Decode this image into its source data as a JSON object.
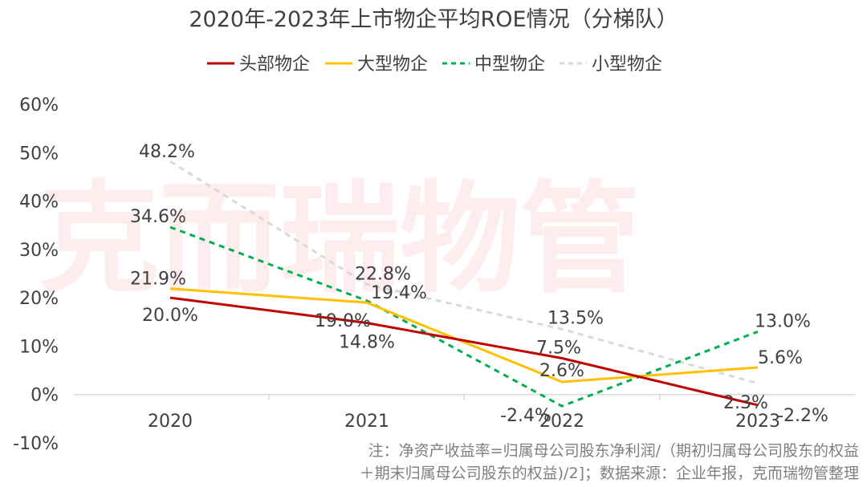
{
  "chart_data": {
    "type": "line",
    "title": "2020年-2023年上市物企平均ROE情况（分梯队）",
    "categories": [
      "2020",
      "2021",
      "2022",
      "2023"
    ],
    "yticks": [
      "60%",
      "50%",
      "40%",
      "30%",
      "20%",
      "10%",
      "0%",
      "-10%"
    ],
    "ylim": [
      -10,
      60
    ],
    "legend_position": "top-center",
    "grid": false,
    "series": [
      {
        "name": "头部物企",
        "color": "#c00000",
        "dash": "solid",
        "values": [
          20.0,
          14.8,
          7.5,
          -2.2
        ],
        "labels": [
          "20.0%",
          "14.8%",
          "7.5%",
          "-2.2%"
        ]
      },
      {
        "name": "大型物企",
        "color": "#ffc000",
        "dash": "solid",
        "values": [
          21.9,
          19.0,
          2.6,
          5.6
        ],
        "labels": [
          "21.9%",
          "19.0%",
          "2.6%",
          "5.6%"
        ]
      },
      {
        "name": "中型物企",
        "color": "#00b050",
        "dash": "dashed",
        "values": [
          34.6,
          19.4,
          -2.4,
          13.0
        ],
        "labels": [
          "34.6%",
          "19.4%",
          "-2.4%",
          "13.0%"
        ]
      },
      {
        "name": "小型物企",
        "color": "#d9d9d9",
        "dash": "dashed",
        "values": [
          48.2,
          22.8,
          13.5,
          2.3
        ],
        "labels": [
          "48.2%",
          "22.8%",
          "13.5%",
          "2.3%"
        ]
      }
    ]
  },
  "note": {
    "line1": "注：净资产收益率=归属母公司股东净利润/（期初归属母公司股东的权益",
    "line2": "＋期末归属母公司股东的权益)/2]；数据来源：企业年报，克而瑞物管整理"
  },
  "watermark": "克而瑞物管"
}
